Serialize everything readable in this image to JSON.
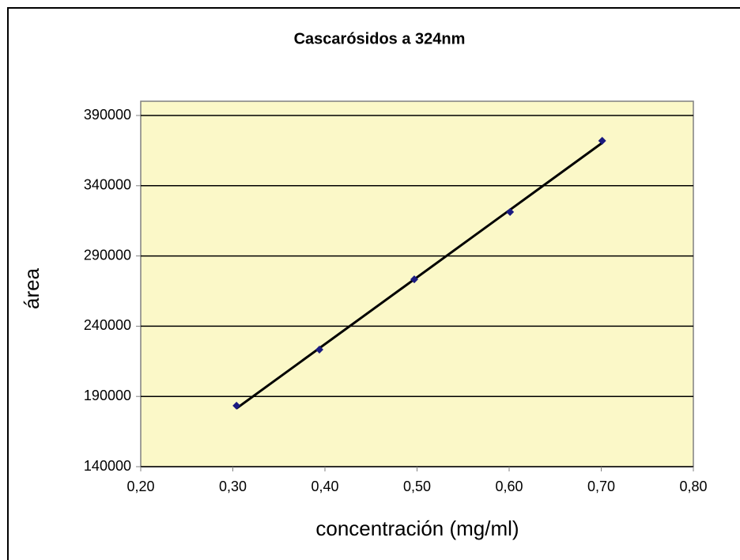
{
  "chart_data": {
    "type": "scatter",
    "title": "Cascarósidos a 324nm",
    "xlabel": "concentración (mg/ml)",
    "ylabel": "área",
    "xlim": [
      0.2,
      0.8
    ],
    "xticks": [
      {
        "value": 0.2,
        "label": "0,20"
      },
      {
        "value": 0.3,
        "label": "0,30"
      },
      {
        "value": 0.4,
        "label": "0,40"
      },
      {
        "value": 0.5,
        "label": "0,50"
      },
      {
        "value": 0.6,
        "label": "0,60"
      },
      {
        "value": 0.7,
        "label": "0,70"
      },
      {
        "value": 0.8,
        "label": "0,80"
      }
    ],
    "ylim": [
      140000,
      390000
    ],
    "yticks": [
      140000,
      190000,
      240000,
      290000,
      340000,
      390000
    ],
    "grid": true,
    "series": [
      {
        "color": "#1a1a80",
        "x": [
          0.304,
          0.394,
          0.497,
          0.601,
          0.701
        ],
        "values": [
          183400,
          223300,
          273400,
          321300,
          372000
        ]
      }
    ],
    "trendline": {
      "color": "#000000",
      "x": [
        0.304,
        0.701
      ],
      "values": [
        181500,
        370500
      ]
    }
  }
}
